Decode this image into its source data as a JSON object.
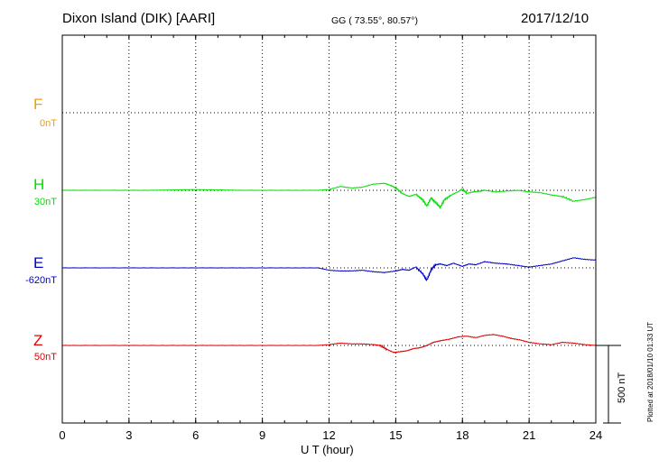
{
  "header": {
    "station": "Dixon Island (DIK)  [AARI]",
    "coords": "GG ( 73.55°,  80.57°)",
    "date": "2017/12/10"
  },
  "colors": {
    "F": "#f0a000",
    "H": "#00e000",
    "E": "#0000cc",
    "Z": "#e00000",
    "frame": "#000000"
  },
  "components": [
    {
      "letter": "F",
      "baseline": "0nT"
    },
    {
      "letter": "H",
      "baseline": "30nT"
    },
    {
      "letter": "E",
      "baseline": "-620nT"
    },
    {
      "letter": "Z",
      "baseline": "50nT"
    }
  ],
  "scale_bar": {
    "label": "500 nT"
  },
  "plotted": "Plotted at 2018/01/10 01:33 UT",
  "chart_data": {
    "type": "line",
    "title": "Dixon Island (DIK)  [AARI]",
    "xlabel": "U T (hour)",
    "ylabel": "",
    "xlim": [
      0,
      24
    ],
    "x_ticks": [
      0,
      3,
      6,
      9,
      12,
      15,
      18,
      21,
      24
    ],
    "x_tick_labels": [
      "0",
      "3",
      "6",
      "9",
      "12",
      "15",
      "18",
      "21",
      "24"
    ],
    "scale_nT": 500,
    "grid": true,
    "series": [
      {
        "name": "F",
        "baseline_label": "0nT",
        "x": [],
        "y": []
      },
      {
        "name": "H",
        "baseline_label": "30nT",
        "x": [
          0,
          2,
          4,
          6,
          8,
          10,
          11.5,
          12,
          12.5,
          13,
          13.5,
          14,
          14.5,
          14.8,
          15,
          15.3,
          15.6,
          15.9,
          16.2,
          16.4,
          16.6,
          16.8,
          17,
          17.2,
          17.5,
          17.8,
          18,
          18.2,
          18.5,
          18.8,
          19,
          19.5,
          20,
          20.5,
          21,
          21.5,
          22,
          22.5,
          23,
          23.5,
          24
        ],
        "y": [
          0,
          0,
          0,
          5,
          0,
          0,
          0,
          5,
          25,
          15,
          20,
          40,
          45,
          30,
          15,
          -20,
          -40,
          -25,
          -60,
          -100,
          -50,
          -80,
          -110,
          -60,
          -30,
          -10,
          10,
          -20,
          -10,
          -5,
          0,
          -10,
          -5,
          0,
          -10,
          -15,
          -30,
          -40,
          -70,
          -60,
          -45
        ]
      },
      {
        "name": "E",
        "baseline_label": "-620nT",
        "x": [
          0,
          2,
          4,
          6,
          8,
          10,
          11.5,
          12,
          12.5,
          13,
          13.5,
          14,
          14.5,
          15,
          15.3,
          15.6,
          15.9,
          16.2,
          16.4,
          16.6,
          16.8,
          17,
          17.3,
          17.6,
          18,
          18.3,
          18.6,
          19,
          19.5,
          20,
          20.5,
          21,
          21.5,
          22,
          22.5,
          23,
          23.5,
          24
        ],
        "y": [
          0,
          0,
          0,
          0,
          0,
          0,
          0,
          -15,
          -20,
          -20,
          -15,
          -25,
          -30,
          -20,
          -10,
          -15,
          5,
          -35,
          -80,
          -10,
          20,
          25,
          15,
          30,
          10,
          25,
          20,
          40,
          30,
          25,
          15,
          5,
          15,
          25,
          45,
          65,
          55,
          50
        ]
      },
      {
        "name": "Z",
        "baseline_label": "50nT",
        "x": [
          0,
          2,
          4,
          6,
          8,
          10,
          11.5,
          12,
          12.5,
          13,
          13.5,
          14,
          14.3,
          14.6,
          14.9,
          15.2,
          15.5,
          15.8,
          16.1,
          16.4,
          16.7,
          17,
          17.4,
          17.8,
          18.2,
          18.6,
          19,
          19.4,
          19.8,
          20.2,
          20.6,
          21,
          21.5,
          22,
          22.5,
          23,
          23.5,
          24
        ],
        "y": [
          0,
          0,
          0,
          0,
          0,
          0,
          0,
          5,
          15,
          10,
          10,
          5,
          0,
          -25,
          -45,
          -40,
          -35,
          -20,
          -15,
          0,
          20,
          30,
          40,
          55,
          60,
          50,
          65,
          70,
          60,
          45,
          35,
          20,
          10,
          5,
          20,
          15,
          5,
          0
        ]
      }
    ]
  }
}
